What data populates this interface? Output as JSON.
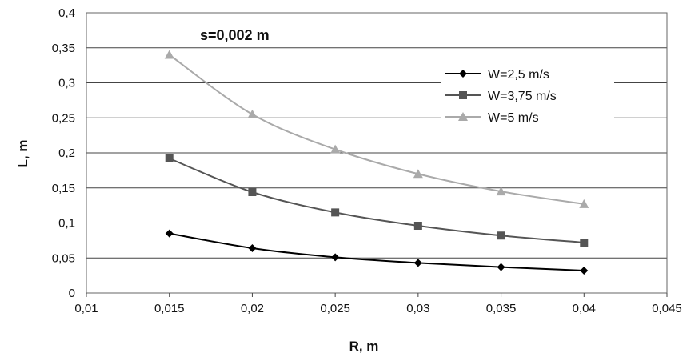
{
  "chart_data": {
    "type": "line",
    "title": "",
    "annotation": "s=0,002 m",
    "xlabel": "R, m",
    "ylabel": "L, m",
    "xlim": [
      0.01,
      0.045
    ],
    "ylim": [
      0,
      0.4
    ],
    "x_ticks": [
      "0,01",
      "0,015",
      "0,02",
      "0,025",
      "0,03",
      "0,035",
      "0,04",
      "0,045"
    ],
    "y_ticks": [
      "0",
      "0,05",
      "0,1",
      "0,15",
      "0,2",
      "0,25",
      "0,3",
      "0,35",
      "0,4"
    ],
    "grid": "horizontal",
    "legend_position": "top-right",
    "x": [
      0.015,
      0.02,
      0.025,
      0.03,
      0.035,
      0.04
    ],
    "series": [
      {
        "name": "W=2,5 m/s",
        "marker": "diamond",
        "color": "#000000",
        "values": [
          0.085,
          0.064,
          0.051,
          0.043,
          0.037,
          0.032
        ]
      },
      {
        "name": "W=3,75 m/s",
        "marker": "square",
        "color": "#555555",
        "values": [
          0.192,
          0.144,
          0.115,
          0.096,
          0.082,
          0.072
        ]
      },
      {
        "name": "W=5 m/s",
        "marker": "triangle",
        "color": "#aaaaaa",
        "values": [
          0.34,
          0.255,
          0.205,
          0.17,
          0.145,
          0.127
        ]
      }
    ]
  }
}
